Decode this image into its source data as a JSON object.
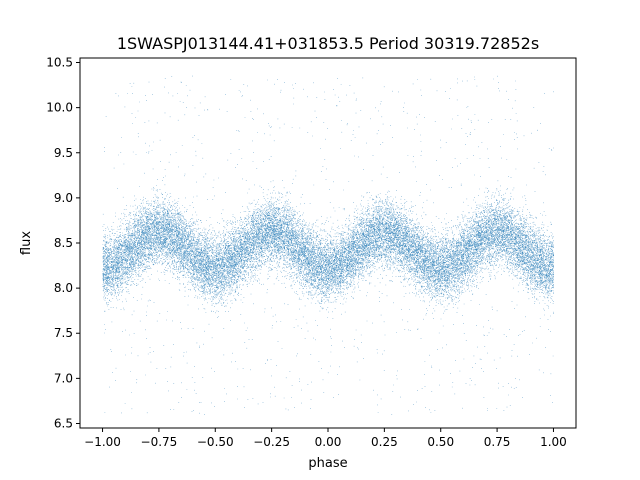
{
  "chart_data": {
    "type": "scatter",
    "title": "1SWASPJ013144.41+031853.5 Period 30319.72852s",
    "xlabel": "phase",
    "ylabel": "flux",
    "xlim": [
      -1.1,
      1.1
    ],
    "ylim": [
      6.45,
      10.55
    ],
    "x_ticks": [
      -1.0,
      -0.75,
      -0.5,
      -0.25,
      0.0,
      0.25,
      0.5,
      0.75,
      1.0
    ],
    "x_tick_labels": [
      "−1.00",
      "−0.75",
      "−0.50",
      "−0.25",
      "0.00",
      "0.25",
      "0.50",
      "0.75",
      "1.00"
    ],
    "y_ticks": [
      6.5,
      7.0,
      7.5,
      8.0,
      8.5,
      9.0,
      9.5,
      10.0,
      10.5
    ],
    "y_tick_labels": [
      "6.5",
      "7.0",
      "7.5",
      "8.0",
      "8.5",
      "9.0",
      "9.5",
      "10.0",
      "10.5"
    ],
    "grid": false,
    "legend": "none",
    "point_color": "#1f77b4",
    "series": [
      {
        "x_range": [
          -1.0,
          1.0
        ],
        "model": "sinusoid, period 0.5 in phase, folded over two cycles",
        "mean_flux": 8.42,
        "semi_amplitude": 0.2,
        "flux_maxima_phase": [
          -0.76,
          -0.24,
          0.26,
          0.76
        ],
        "flux_minima_phase": [
          -0.5,
          0.0,
          0.5
        ],
        "flux_scatter_sigma": 0.18,
        "outlier_flux_range": [
          6.6,
          10.35
        ],
        "approx_point_count": 30000
      }
    ]
  }
}
